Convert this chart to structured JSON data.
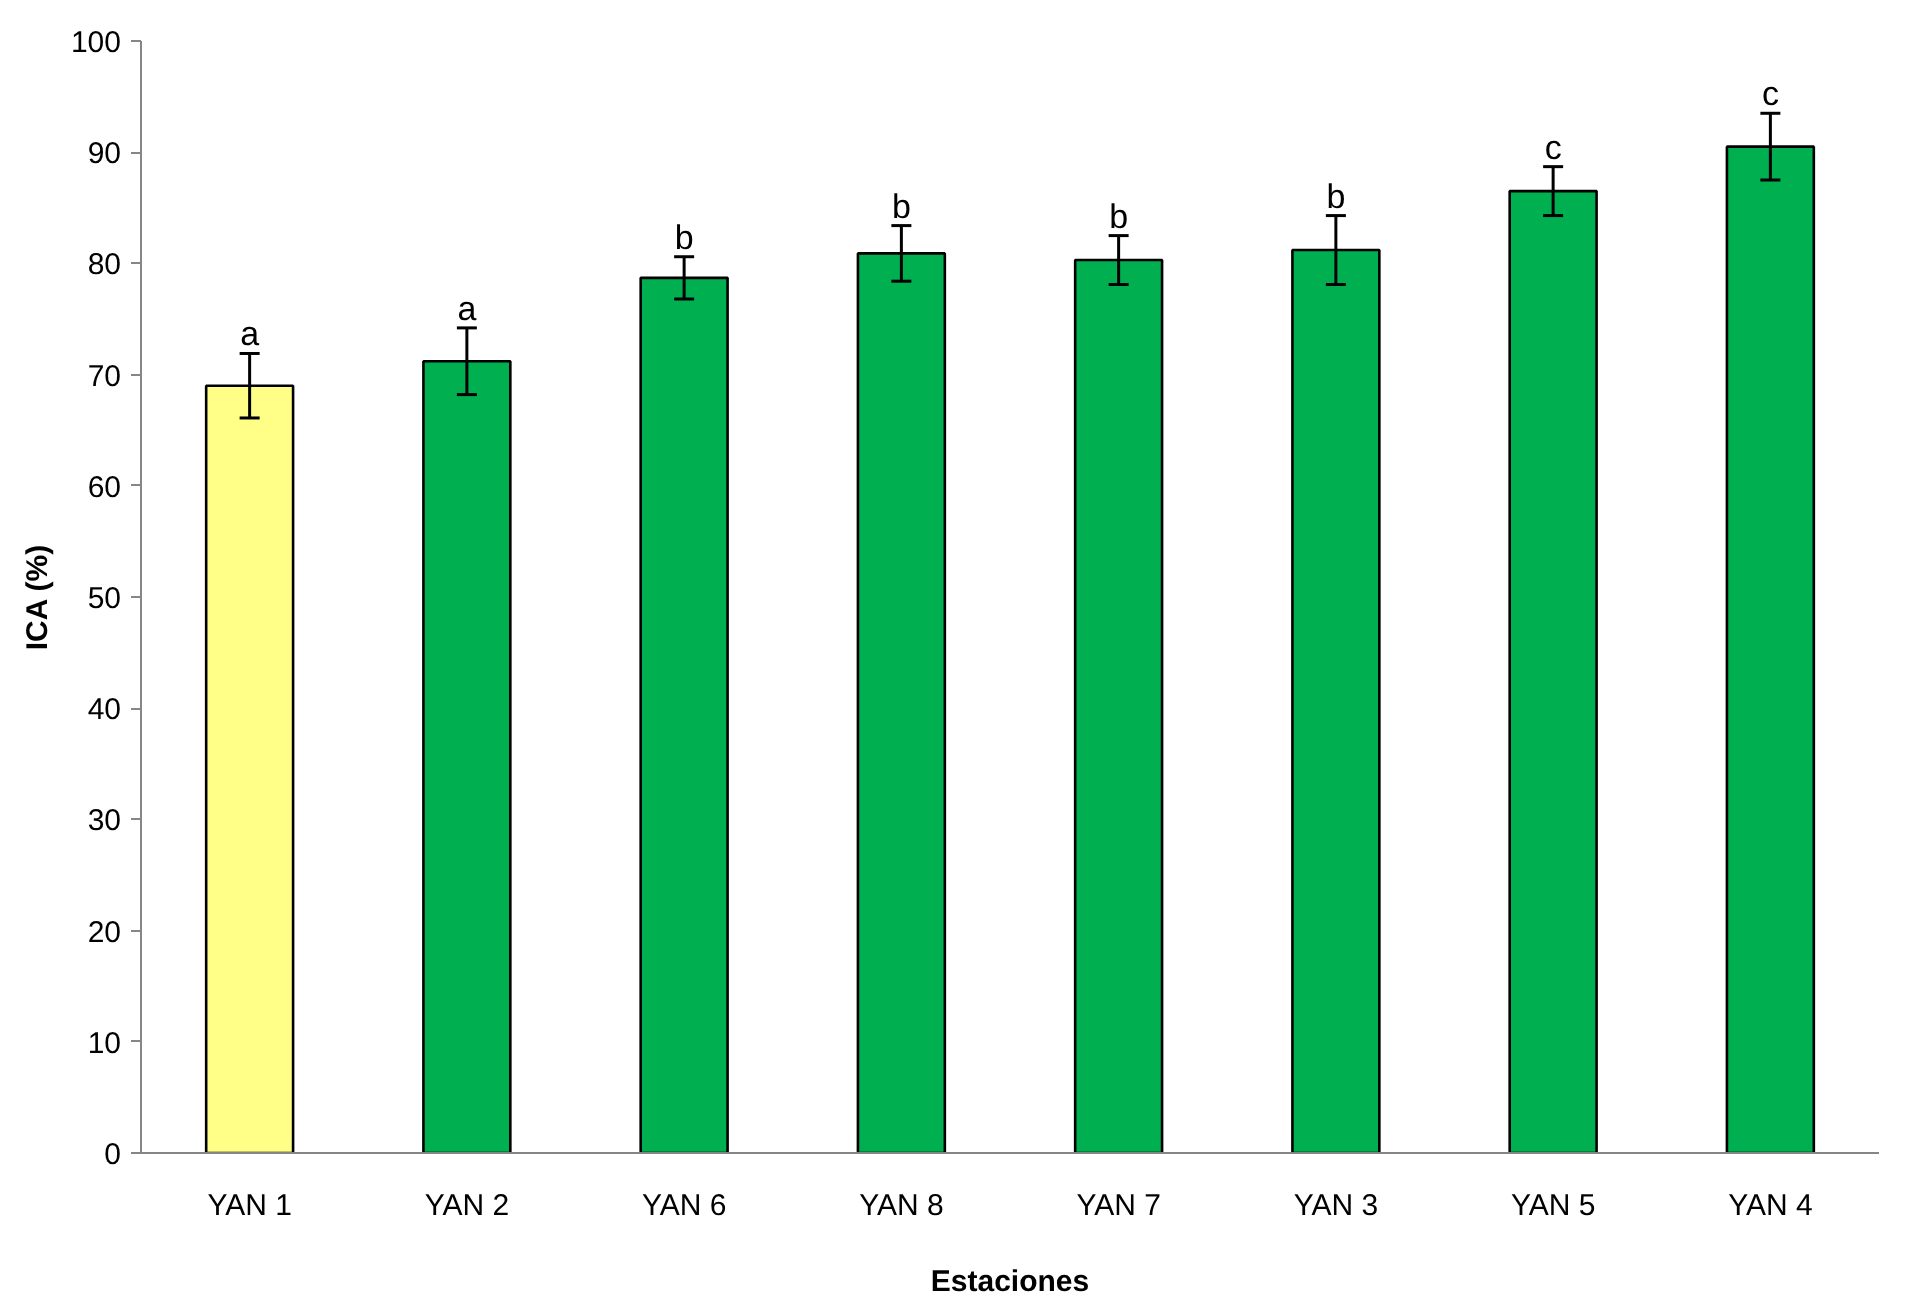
{
  "chart_data": {
    "type": "bar",
    "xlabel": "Estaciones",
    "ylabel": "ICA (%)",
    "categories": [
      "YAN 1",
      "YAN 2",
      "YAN 6",
      "YAN 8",
      "YAN 7",
      "YAN 3",
      "YAN 5",
      "YAN 4"
    ],
    "values": [
      69.0,
      71.2,
      78.7,
      80.9,
      80.3,
      81.2,
      86.5,
      90.5
    ],
    "colors": [
      "#ffff88",
      "#00b050",
      "#00b050",
      "#00b050",
      "#00b050",
      "#00b050",
      "#00b050",
      "#00b050"
    ],
    "errors": [
      2.9,
      3.0,
      1.9,
      2.5,
      2.2,
      3.1,
      2.2,
      3.0
    ],
    "ylim": [
      0,
      100
    ],
    "yticks": [
      0,
      10,
      20,
      30,
      40,
      50,
      60,
      70,
      80,
      90,
      100
    ],
    "grid": false,
    "annotations": [
      {
        "text": "a",
        "x": "YAN 1",
        "y": 71.9
      },
      {
        "text": "a",
        "x": "YAN 2",
        "y": 74.2
      },
      {
        "text": "b",
        "x": "YAN 6",
        "y": 80.6
      },
      {
        "text": "b",
        "x": "YAN 8",
        "y": 83.4
      },
      {
        "text": "b",
        "x": "YAN 7",
        "y": 82.5
      },
      {
        "text": "b",
        "x": "YAN 3",
        "y": 84.3
      },
      {
        "text": "c",
        "x": "YAN 5",
        "y": 88.7
      },
      {
        "text": "c",
        "x": "YAN 4",
        "y": 93.5
      }
    ]
  }
}
